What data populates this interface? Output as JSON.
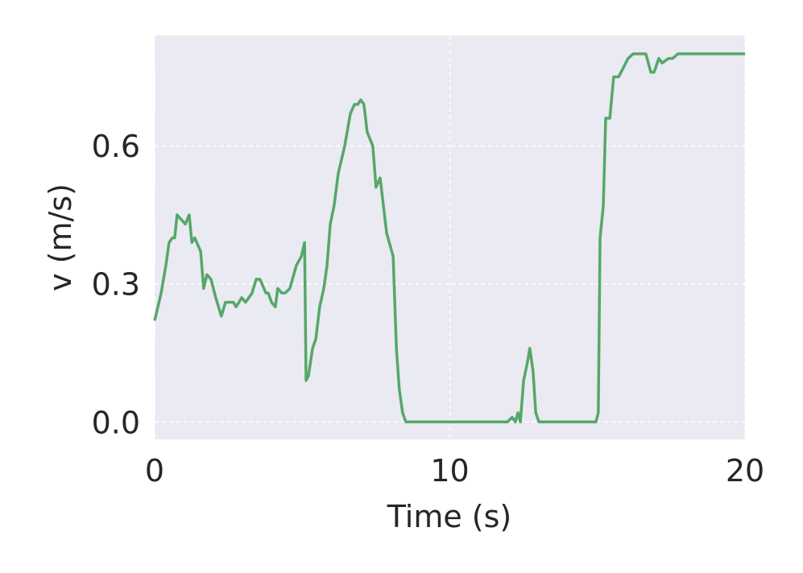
{
  "chart_data": {
    "type": "line",
    "xlabel": "Time (s)",
    "ylabel": "v (m/s)",
    "x": [
      0,
      0.22,
      0.38,
      0.49,
      0.6,
      0.68,
      0.76,
      0.9,
      1.04,
      1.17,
      1.26,
      1.36,
      1.56,
      1.66,
      1.77,
      1.91,
      2.07,
      2.26,
      2.4,
      2.59,
      2.67,
      2.76,
      2.95,
      3.08,
      3.3,
      3.44,
      3.57,
      3.77,
      3.85,
      3.96,
      4.09,
      4.17,
      4.31,
      4.42,
      4.58,
      4.8,
      4.97,
      5.08,
      5.13,
      5.21,
      5.35,
      5.46,
      5.59,
      5.73,
      5.84,
      5.95,
      6.08,
      6.22,
      6.44,
      6.63,
      6.77,
      6.88,
      6.98,
      7.09,
      7.2,
      7.39,
      7.5,
      7.64,
      7.86,
      8.08,
      8.19,
      8.29,
      8.4,
      8.51,
      11.95,
      12.11,
      12.22,
      12.31,
      12.39,
      12.5,
      12.63,
      12.71,
      12.82,
      12.91,
      13.02,
      14.95,
      15.03,
      15.09,
      15.2,
      15.28,
      15.42,
      15.55,
      15.72,
      15.88,
      16.04,
      16.21,
      16.45,
      16.64,
      16.81,
      16.92,
      17.08,
      17.19,
      17.41,
      17.55,
      17.73,
      18.23,
      20
    ],
    "series": [
      {
        "name": "v",
        "color": "#55a868",
        "values": [
          0.22,
          0.28,
          0.34,
          0.39,
          0.4,
          0.4,
          0.45,
          0.44,
          0.43,
          0.45,
          0.39,
          0.4,
          0.37,
          0.29,
          0.32,
          0.31,
          0.27,
          0.23,
          0.26,
          0.26,
          0.26,
          0.25,
          0.27,
          0.26,
          0.28,
          0.31,
          0.31,
          0.28,
          0.28,
          0.26,
          0.25,
          0.29,
          0.28,
          0.28,
          0.29,
          0.34,
          0.36,
          0.39,
          0.09,
          0.1,
          0.16,
          0.18,
          0.25,
          0.29,
          0.34,
          0.43,
          0.47,
          0.54,
          0.6,
          0.67,
          0.69,
          0.69,
          0.7,
          0.69,
          0.63,
          0.6,
          0.51,
          0.53,
          0.41,
          0.36,
          0.16,
          0.07,
          0.02,
          0,
          0,
          0.01,
          0,
          0.02,
          0,
          0.09,
          0.13,
          0.16,
          0.11,
          0.02,
          0,
          0,
          0.02,
          0.4,
          0.47,
          0.66,
          0.66,
          0.75,
          0.75,
          0.77,
          0.79,
          0.8,
          0.8,
          0.8,
          0.76,
          0.76,
          0.79,
          0.78,
          0.79,
          0.79,
          0.8,
          0.8,
          0.8
        ]
      }
    ],
    "xlim": [
      0,
      20
    ],
    "xticks": [
      0,
      10,
      20
    ],
    "ylim": [
      -0.038,
      0.84
    ],
    "yticks": [
      {
        "value": 0,
        "label": "0.0"
      },
      0.3,
      0.6
    ],
    "grid": true
  }
}
